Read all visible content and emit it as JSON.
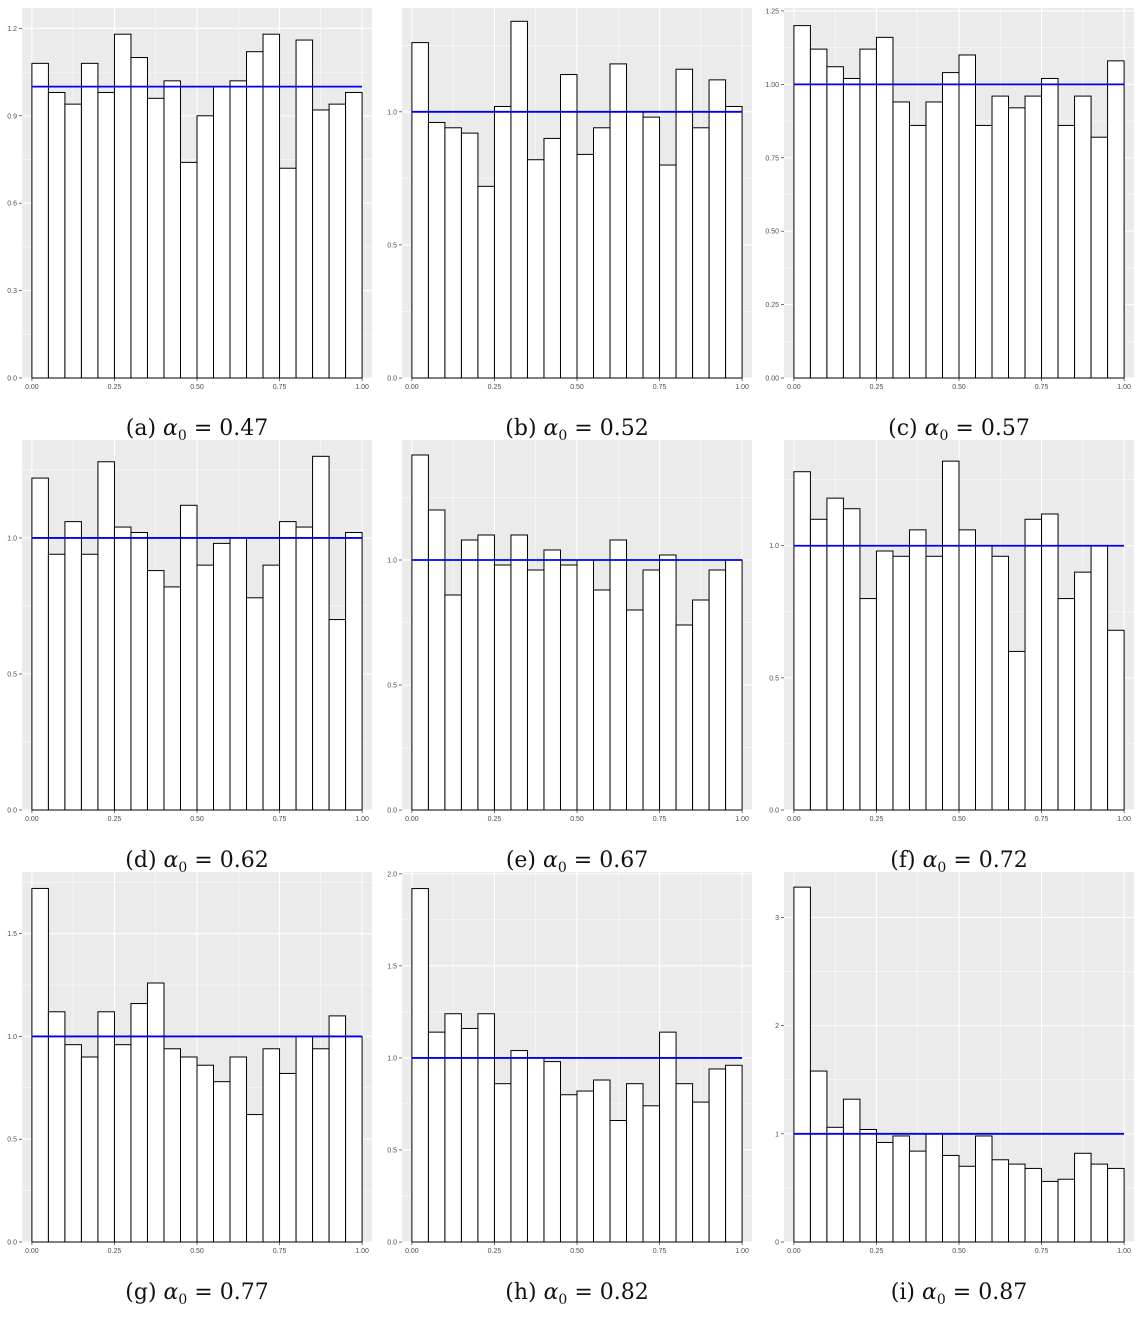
{
  "reference_line_color": "#0000ee",
  "panel_background": "#ebebeb",
  "gridline_color": "#ffffff",
  "bar_fill": "#ffffff",
  "bar_stroke": "#000000",
  "chart_data": [
    {
      "type": "bar",
      "caption": {
        "label": "(a)",
        "symbol": "α",
        "subscript": "0",
        "value": "= 0.47"
      },
      "x_ticks": [
        "0.00",
        "0.25",
        "0.50",
        "0.75",
        "1.00"
      ],
      "y_ticks": [
        "0.0",
        "0.3",
        "0.6",
        "0.9",
        "1.2"
      ],
      "xlim": [
        -0.03,
        1.03
      ],
      "ylim": [
        0,
        1.27
      ],
      "bins": 20,
      "values": [
        1.08,
        0.98,
        0.94,
        1.08,
        0.98,
        1.18,
        1.1,
        0.96,
        1.02,
        0.74,
        0.9,
        1.0,
        1.02,
        1.12,
        1.18,
        0.72,
        1.16,
        0.92,
        0.94,
        0.98
      ],
      "reference": 1.0
    },
    {
      "type": "bar",
      "caption": {
        "label": "(b)",
        "symbol": "α",
        "subscript": "0",
        "value": "= 0.52"
      },
      "x_ticks": [
        "0.00",
        "0.25",
        "0.50",
        "0.75",
        "1.00"
      ],
      "y_ticks": [
        "0.0",
        "0.5",
        "1.0"
      ],
      "xlim": [
        -0.03,
        1.03
      ],
      "ylim": [
        0,
        1.39
      ],
      "bins": 20,
      "values": [
        1.26,
        0.96,
        0.94,
        0.92,
        0.72,
        1.02,
        1.34,
        0.82,
        0.9,
        1.14,
        0.84,
        0.94,
        1.18,
        1.0,
        0.98,
        0.8,
        1.16,
        0.94,
        1.12,
        1.02
      ],
      "reference": 1.0
    },
    {
      "type": "bar",
      "caption": {
        "label": "(c)",
        "symbol": "α",
        "subscript": "0",
        "value": "= 0.57"
      },
      "x_ticks": [
        "0.00",
        "0.25",
        "0.50",
        "0.75",
        "1.00"
      ],
      "y_ticks": [
        "0.00",
        "0.25",
        "0.50",
        "0.75",
        "1.00",
        "1.25"
      ],
      "xlim": [
        -0.03,
        1.03
      ],
      "ylim": [
        0,
        1.26
      ],
      "bins": 20,
      "values": [
        1.2,
        1.12,
        1.06,
        1.02,
        1.12,
        1.16,
        0.94,
        0.86,
        0.94,
        1.04,
        1.1,
        0.86,
        0.96,
        0.92,
        0.96,
        1.02,
        0.86,
        0.96,
        0.82,
        1.08
      ],
      "reference": 1.0
    },
    {
      "type": "bar",
      "caption": {
        "label": "(d)",
        "symbol": "α",
        "subscript": "0",
        "value": "= 0.62"
      },
      "x_ticks": [
        "0.00",
        "0.25",
        "0.50",
        "0.75",
        "1.00"
      ],
      "y_ticks": [
        "0.0",
        "0.5",
        "1.0"
      ],
      "xlim": [
        -0.03,
        1.03
      ],
      "ylim": [
        0,
        1.36
      ],
      "bins": 20,
      "values": [
        1.22,
        0.94,
        1.06,
        0.94,
        1.28,
        1.04,
        1.02,
        0.88,
        0.82,
        1.12,
        0.9,
        0.98,
        1.0,
        0.78,
        0.9,
        1.06,
        1.04,
        1.3,
        0.7,
        1.02
      ],
      "reference": 1.0
    },
    {
      "type": "bar",
      "caption": {
        "label": "(e)",
        "symbol": "α",
        "subscript": "0",
        "value": "= 0.67"
      },
      "x_ticks": [
        "0.00",
        "0.25",
        "0.50",
        "0.75",
        "1.00"
      ],
      "y_ticks": [
        "0.0",
        "0.5",
        "1.0"
      ],
      "xlim": [
        -0.03,
        1.03
      ],
      "ylim": [
        0,
        1.48
      ],
      "bins": 20,
      "values": [
        1.42,
        1.2,
        0.86,
        1.08,
        1.1,
        0.98,
        1.1,
        0.96,
        1.04,
        0.98,
        1.0,
        0.88,
        1.08,
        0.8,
        0.96,
        1.02,
        0.74,
        0.84,
        0.96,
        1.0
      ],
      "reference": 1.0
    },
    {
      "type": "bar",
      "caption": {
        "label": "(f)",
        "symbol": "α",
        "subscript": "0",
        "value": "= 0.72"
      },
      "x_ticks": [
        "0.00",
        "0.25",
        "0.50",
        "0.75",
        "1.00"
      ],
      "y_ticks": [
        "0.0",
        "0.5",
        "1.0"
      ],
      "xlim": [
        -0.03,
        1.03
      ],
      "ylim": [
        0,
        1.4
      ],
      "bins": 20,
      "values": [
        1.28,
        1.1,
        1.18,
        1.14,
        0.8,
        0.98,
        0.96,
        1.06,
        0.96,
        1.32,
        1.06,
        1.0,
        0.96,
        0.6,
        1.1,
        1.12,
        0.8,
        0.9,
        1.0,
        0.68
      ],
      "reference": 1.0
    },
    {
      "type": "bar",
      "caption": {
        "label": "(g)",
        "symbol": "α",
        "subscript": "0",
        "value": "= 0.77"
      },
      "x_ticks": [
        "0.00",
        "0.25",
        "0.50",
        "0.75",
        "1.00"
      ],
      "y_ticks": [
        "0.0",
        "0.5",
        "1.0",
        "1.5"
      ],
      "xlim": [
        -0.03,
        1.03
      ],
      "ylim": [
        0,
        1.8
      ],
      "bins": 20,
      "values": [
        1.72,
        1.12,
        0.96,
        0.9,
        1.12,
        0.96,
        1.16,
        1.26,
        0.94,
        0.9,
        0.86,
        0.78,
        0.9,
        0.62,
        0.94,
        0.82,
        1.0,
        0.94,
        1.1,
        1.0
      ],
      "reference": 1.0
    },
    {
      "type": "bar",
      "caption": {
        "label": "(h)",
        "symbol": "α",
        "subscript": "0",
        "value": "= 0.82"
      },
      "x_ticks": [
        "0.00",
        "0.25",
        "0.50",
        "0.75",
        "1.00"
      ],
      "y_ticks": [
        "0.0",
        "0.5",
        "1.0",
        "1.5",
        "2.0"
      ],
      "xlim": [
        -0.03,
        1.03
      ],
      "ylim": [
        0,
        2.01
      ],
      "bins": 20,
      "values": [
        1.92,
        1.14,
        1.24,
        1.16,
        1.24,
        0.86,
        1.04,
        1.0,
        0.98,
        0.8,
        0.82,
        0.88,
        0.66,
        0.86,
        0.74,
        1.14,
        0.86,
        0.76,
        0.94,
        0.96
      ],
      "reference": 1.0
    },
    {
      "type": "bar",
      "caption": {
        "label": "(i)",
        "symbol": "α",
        "subscript": "0",
        "value": "= 0.87"
      },
      "x_ticks": [
        "0.00",
        "0.25",
        "0.50",
        "0.75",
        "1.00"
      ],
      "y_ticks": [
        "0",
        "1",
        "2",
        "3"
      ],
      "xlim": [
        -0.03,
        1.03
      ],
      "ylim": [
        0,
        3.42
      ],
      "bins": 20,
      "values": [
        3.28,
        1.58,
        1.06,
        1.32,
        1.04,
        0.92,
        0.98,
        0.84,
        1.0,
        0.8,
        0.7,
        0.98,
        0.76,
        0.72,
        0.68,
        0.56,
        0.58,
        0.82,
        0.72,
        0.68
      ],
      "reference": 1.0
    }
  ]
}
